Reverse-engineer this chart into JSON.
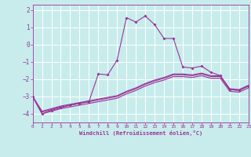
{
  "background_color": "#c8ecec",
  "grid_color": "#b0d8d8",
  "line_color": "#993399",
  "xlim": [
    0,
    23
  ],
  "ylim": [
    -4.5,
    2.3
  ],
  "yticks": [
    2,
    1,
    0,
    -1,
    -2,
    -3,
    -4
  ],
  "xticks": [
    0,
    1,
    2,
    3,
    4,
    5,
    6,
    7,
    8,
    9,
    10,
    11,
    12,
    13,
    14,
    15,
    16,
    17,
    18,
    19,
    20,
    21,
    22,
    23
  ],
  "xlabel": "Windchill (Refroidissement éolien,°C)",
  "series": [
    {
      "has_markers": true,
      "x": [
        0,
        1,
        2,
        3,
        4,
        5,
        6,
        7,
        8,
        9,
        10,
        11,
        12,
        13,
        14,
        15,
        16,
        17,
        18,
        19,
        20,
        21,
        22,
        23
      ],
      "y": [
        -3.0,
        -4.0,
        -3.8,
        -3.65,
        -3.5,
        -3.4,
        -3.3,
        -1.7,
        -1.75,
        -0.9,
        1.55,
        1.3,
        1.65,
        1.15,
        0.35,
        0.35,
        -1.3,
        -1.35,
        -1.25,
        -1.6,
        -1.8,
        -2.6,
        -2.65,
        -2.4
      ]
    },
    {
      "has_markers": false,
      "x": [
        0,
        1,
        2,
        3,
        4,
        5,
        6,
        7,
        8,
        9,
        10,
        11,
        12,
        13,
        14,
        15,
        16,
        17,
        18,
        19,
        20,
        21,
        22,
        23
      ],
      "y": [
        -3.0,
        -4.0,
        -3.85,
        -3.7,
        -3.6,
        -3.5,
        -3.4,
        -3.3,
        -3.2,
        -3.1,
        -2.85,
        -2.65,
        -2.4,
        -2.2,
        -2.05,
        -1.85,
        -1.85,
        -1.9,
        -1.8,
        -1.95,
        -1.95,
        -2.7,
        -2.75,
        -2.5
      ]
    },
    {
      "has_markers": false,
      "x": [
        0,
        1,
        2,
        3,
        4,
        5,
        6,
        7,
        8,
        9,
        10,
        11,
        12,
        13,
        14,
        15,
        16,
        17,
        18,
        19,
        20,
        21,
        22,
        23
      ],
      "y": [
        -3.0,
        -3.9,
        -3.75,
        -3.6,
        -3.5,
        -3.4,
        -3.3,
        -3.2,
        -3.1,
        -3.0,
        -2.75,
        -2.55,
        -2.3,
        -2.1,
        -1.95,
        -1.75,
        -1.75,
        -1.8,
        -1.7,
        -1.85,
        -1.85,
        -2.6,
        -2.65,
        -2.4
      ]
    },
    {
      "has_markers": false,
      "x": [
        0,
        1,
        2,
        3,
        4,
        5,
        6,
        7,
        8,
        9,
        10,
        11,
        12,
        13,
        14,
        15,
        16,
        17,
        18,
        19,
        20,
        21,
        22,
        23
      ],
      "y": [
        -3.0,
        -3.85,
        -3.7,
        -3.55,
        -3.45,
        -3.35,
        -3.25,
        -3.15,
        -3.05,
        -2.95,
        -2.7,
        -2.5,
        -2.25,
        -2.05,
        -1.9,
        -1.7,
        -1.7,
        -1.75,
        -1.65,
        -1.8,
        -1.8,
        -2.55,
        -2.6,
        -2.35
      ]
    }
  ]
}
